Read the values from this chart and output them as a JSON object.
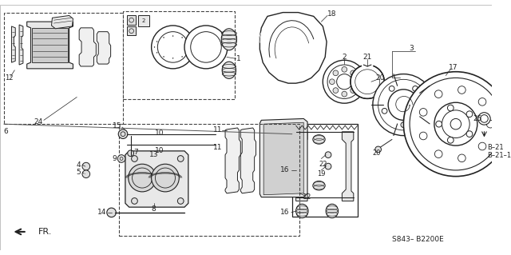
{
  "bg_color": "#ffffff",
  "line_color": "#222222",
  "code_label": "S843– B2200E",
  "direction_label": "FR.",
  "b_label1": "B–21",
  "b_label2": "B–21–1"
}
